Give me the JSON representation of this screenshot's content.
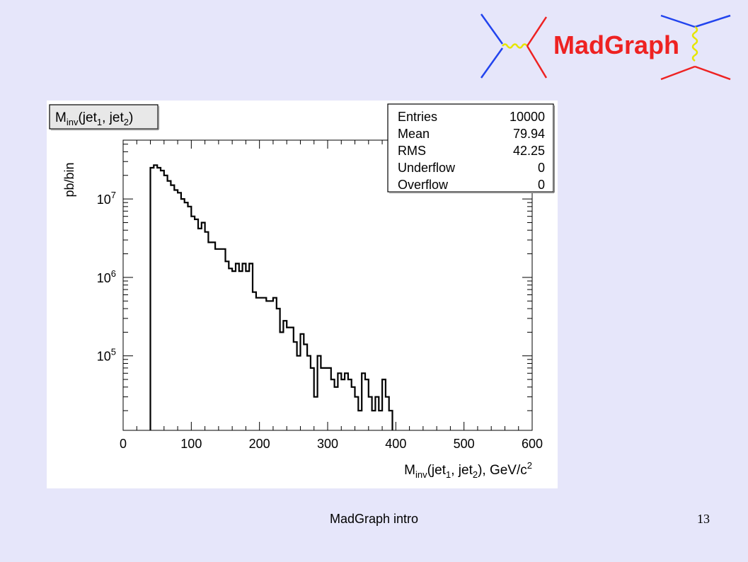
{
  "logo": {
    "text": "MadGraph",
    "text_color": "#ee2222",
    "line_blue": "#2244ee",
    "line_red": "#ee2222",
    "boson_color": "#e6e600"
  },
  "chart_data": {
    "type": "histogram",
    "title": {
      "base": "M",
      "sub": "inv",
      "open": "(jet",
      "sub1": "1",
      "mid": ", jet",
      "sub2": "2",
      "close": ")"
    },
    "xlabel": {
      "base": "M",
      "sub": "inv",
      "open": "(jet",
      "sub1": "1",
      "mid": ", jet",
      "sub2": "2",
      "tail": "), GeV/c",
      "sup": "2"
    },
    "ylabel": "pb/bin",
    "xlim": [
      0,
      600
    ],
    "ylim_log10": [
      4.05,
      7.75
    ],
    "y_scale": "log",
    "x_ticks": [
      0,
      100,
      200,
      300,
      400,
      500,
      600
    ],
    "y_tick_labels": [
      {
        "base": "10",
        "exp": "5",
        "value": 100000
      },
      {
        "base": "10",
        "exp": "6",
        "value": 1000000
      },
      {
        "base": "10",
        "exp": "7",
        "value": 10000000
      }
    ],
    "bin_width": 5,
    "bin_low_edges": [
      40,
      45,
      50,
      55,
      60,
      65,
      70,
      75,
      80,
      85,
      90,
      95,
      100,
      105,
      110,
      115,
      120,
      125,
      130,
      135,
      140,
      145,
      150,
      155,
      160,
      165,
      170,
      175,
      180,
      185,
      190,
      195,
      200,
      205,
      210,
      215,
      220,
      225,
      230,
      235,
      240,
      245,
      250,
      255,
      260,
      265,
      270,
      275,
      280,
      285,
      290,
      295,
      300,
      305,
      310,
      315,
      320,
      325,
      330,
      335,
      340,
      345,
      350,
      355,
      360,
      365,
      370,
      375,
      380,
      385,
      390
    ],
    "values": [
      25000000,
      27000000,
      25000000,
      23000000,
      20000000,
      17000000,
      15000000,
      13000000,
      12000000,
      10000000,
      9000000,
      8000000,
      6000000,
      5500000,
      4200000,
      5000000,
      3800000,
      2800000,
      2800000,
      2300000,
      2300000,
      2300000,
      1600000,
      1300000,
      1200000,
      1500000,
      1200000,
      1500000,
      1200000,
      1500000,
      650000,
      550000,
      550000,
      550000,
      500000,
      500000,
      550000,
      400000,
      200000,
      280000,
      230000,
      230000,
      150000,
      100000,
      190000,
      140000,
      100000,
      70000,
      30000,
      100000,
      70000,
      70000,
      70000,
      50000,
      40000,
      60000,
      50000,
      60000,
      50000,
      40000,
      30000,
      20000,
      60000,
      50000,
      30000,
      20000,
      30000,
      20000,
      50000,
      30000,
      20000
    ],
    "stats_box": {
      "rows": [
        {
          "label": "Entries",
          "value": "10000"
        },
        {
          "label": "Mean",
          "value": "79.94"
        },
        {
          "label": "RMS",
          "value": "42.25"
        },
        {
          "label": "Underflow",
          "value": "0"
        },
        {
          "label": "Overflow",
          "value": "0"
        }
      ]
    },
    "grid": false,
    "line_color": "#000000"
  },
  "footer": {
    "title": "MadGraph intro",
    "slide_number": "13"
  }
}
